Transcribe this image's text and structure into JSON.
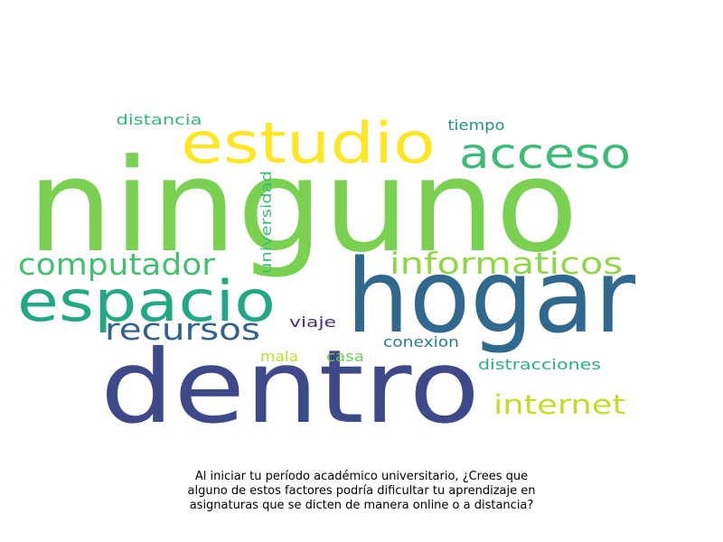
{
  "words": [
    {
      "text": "ninguno",
      "color": "#7ad151"
    },
    {
      "text": "hogar",
      "color": "#31688e"
    },
    {
      "text": "dentro",
      "color": "#3e4989"
    },
    {
      "text": "estudio",
      "color": "#fde725"
    },
    {
      "text": "espacio",
      "color": "#22a884"
    },
    {
      "text": "acceso",
      "color": "#3bbb75"
    },
    {
      "text": "computador",
      "color": "#44bf70"
    },
    {
      "text": "informaticos",
      "color": "#8fd744"
    },
    {
      "text": "recursos",
      "color": "#33638d"
    },
    {
      "text": "internet",
      "color": "#bddf26"
    },
    {
      "text": "distancia",
      "color": "#35b779"
    },
    {
      "text": "tiempo",
      "color": "#21918c"
    },
    {
      "text": "universidad",
      "color": "#3cbc75"
    },
    {
      "text": "viaje",
      "color": "#472f7d"
    },
    {
      "text": "mala",
      "color": "#b8de29"
    },
    {
      "text": "casa",
      "color": "#6ccd5a"
    },
    {
      "text": "conexion",
      "color": "#287c8e"
    },
    {
      "text": "distracciones",
      "color": "#29af7f"
    }
  ],
  "caption": {
    "line1": "Al iniciar tu período académico universitario, ¿Crees que",
    "line2": "alguno de estos factores podría dificultar tu aprendizaje en",
    "line3": "asignaturas que se dicten de manera online o a distancia?"
  }
}
